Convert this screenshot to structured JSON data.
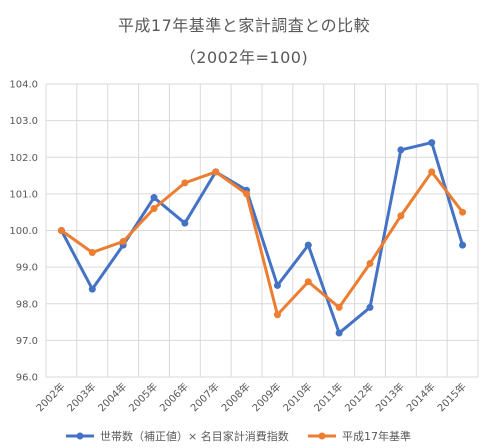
{
  "chart_data": {
    "type": "line",
    "title": "平成17年基準と家計調査との比較",
    "subtitle": "（2002年=100)",
    "categories": [
      "2002年",
      "2003年",
      "2004年",
      "2005年",
      "2006年",
      "2007年",
      "2008年",
      "2009年",
      "2010年",
      "2011年",
      "2012年",
      "2013年",
      "2014年",
      "2015年"
    ],
    "ylim": [
      96.0,
      104.0
    ],
    "yticks": [
      "96.0",
      "97.0",
      "98.0",
      "99.0",
      "100.0",
      "101.0",
      "102.0",
      "103.0",
      "104.0"
    ],
    "grid": true,
    "legend_position": "bottom",
    "series": [
      {
        "name": "世帯数（補正値）× 名目家計消費指数",
        "color": "#4472C4",
        "values": [
          100.0,
          98.4,
          99.6,
          100.9,
          100.2,
          101.6,
          101.1,
          98.5,
          99.6,
          97.2,
          97.9,
          102.2,
          102.4,
          99.6
        ]
      },
      {
        "name": "平成17年基準",
        "color": "#ED7D31",
        "values": [
          100.0,
          99.4,
          99.7,
          100.6,
          101.3,
          101.6,
          101.0,
          97.7,
          98.6,
          97.9,
          99.1,
          100.4,
          101.6,
          100.5
        ]
      }
    ]
  }
}
